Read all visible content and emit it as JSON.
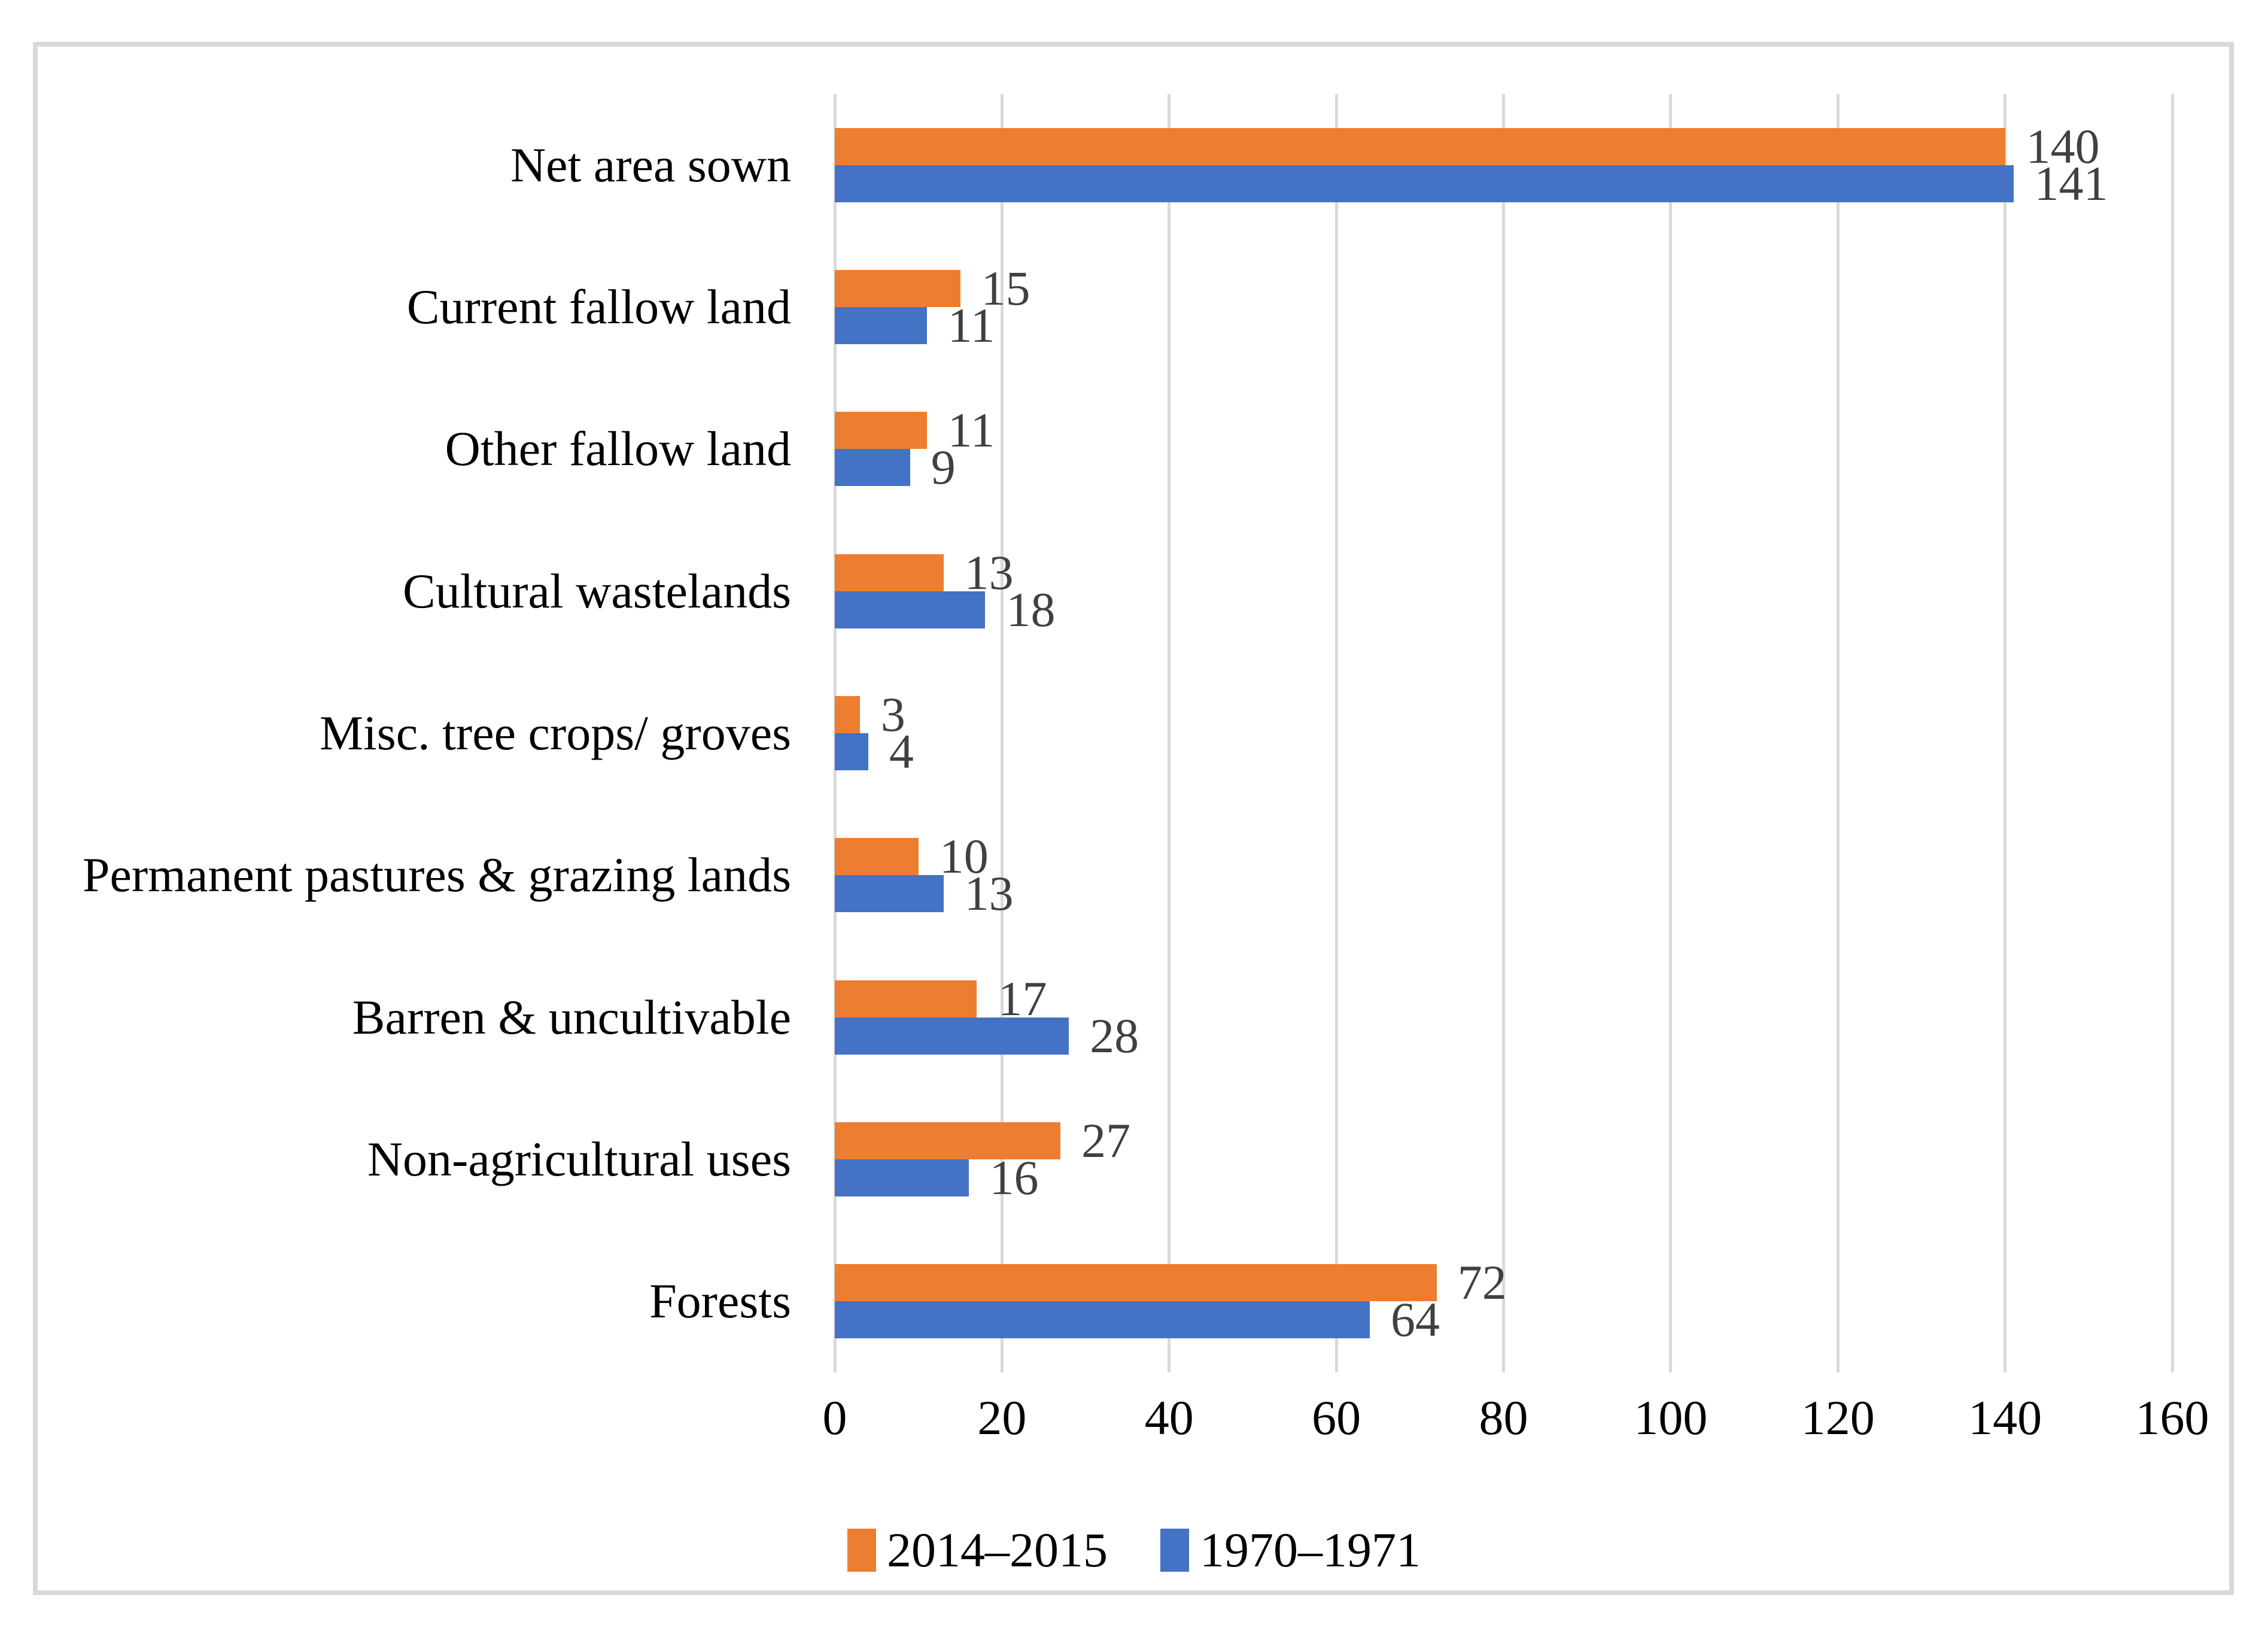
{
  "chart_data": {
    "type": "bar",
    "orientation": "horizontal",
    "title": "",
    "xlabel": "",
    "ylabel": "",
    "categories": [
      "Net area sown",
      "Current fallow land",
      "Other fallow land",
      "Cultural wastelands",
      "Misc. tree crops/ groves",
      "Permanent pastures & grazing lands",
      "Barren & uncultivable",
      "Non-agricultural uses",
      "Forests"
    ],
    "series": [
      {
        "name": "2014–2015",
        "color": "#ED7D31",
        "values": [
          140,
          15,
          11,
          13,
          3,
          10,
          17,
          27,
          72
        ]
      },
      {
        "name": "1970–1971",
        "color": "#4472C4",
        "values": [
          141,
          11,
          9,
          18,
          4,
          13,
          28,
          16,
          64
        ]
      }
    ],
    "xlim": [
      0,
      160
    ],
    "x_ticks": [
      0,
      20,
      40,
      60,
      80,
      100,
      120,
      140,
      160
    ],
    "grid": true,
    "gridline_color": "#D9D9D9",
    "frame_color": "#D9D9D9",
    "data_labels": true,
    "data_label_color": "#404040",
    "legend_position": "bottom"
  }
}
